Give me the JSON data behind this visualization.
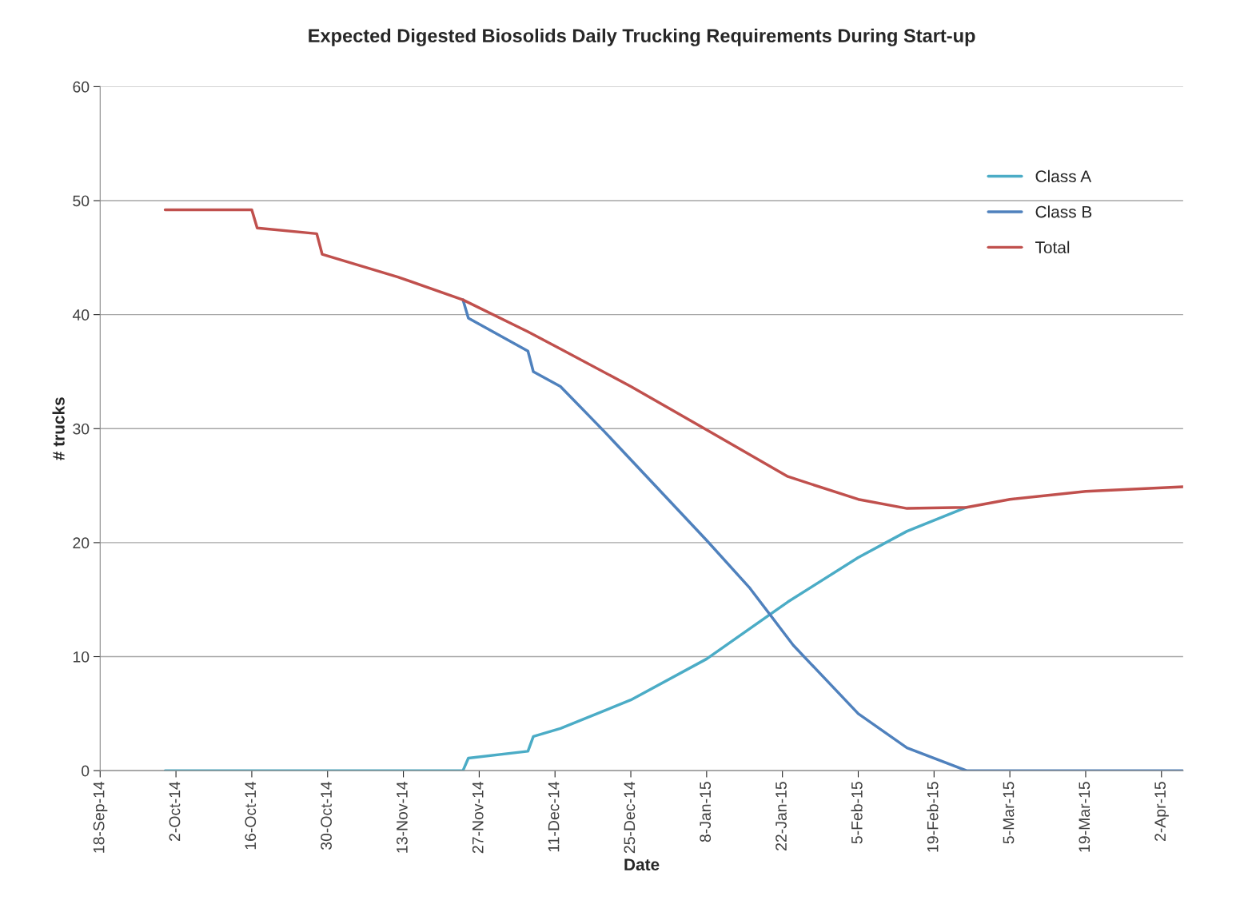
{
  "chart_data": {
    "type": "line",
    "title": "Expected Digested Biosolids Daily Trucking Requirements During Start-up",
    "xlabel": "Date",
    "ylabel": "# trucks",
    "xlim": [
      "2014-09-18",
      "2015-04-06"
    ],
    "xticks": [
      {
        "value": "2014-09-18",
        "label": "18-Sep-14"
      },
      {
        "value": "2014-10-02",
        "label": "2-Oct-14"
      },
      {
        "value": "2014-10-16",
        "label": "16-Oct-14"
      },
      {
        "value": "2014-10-30",
        "label": "30-Oct-14"
      },
      {
        "value": "2014-11-13",
        "label": "13-Nov-14"
      },
      {
        "value": "2014-11-27",
        "label": "27-Nov-14"
      },
      {
        "value": "2014-12-11",
        "label": "11-Dec-14"
      },
      {
        "value": "2014-12-25",
        "label": "25-Dec-14"
      },
      {
        "value": "2015-01-08",
        "label": "8-Jan-15"
      },
      {
        "value": "2015-01-22",
        "label": "22-Jan-15"
      },
      {
        "value": "2015-02-05",
        "label": "5-Feb-15"
      },
      {
        "value": "2015-02-19",
        "label": "19-Feb-15"
      },
      {
        "value": "2015-03-05",
        "label": "5-Mar-15"
      },
      {
        "value": "2015-03-19",
        "label": "19-Mar-15"
      },
      {
        "value": "2015-04-02",
        "label": "2-Apr-15"
      }
    ],
    "ylim": [
      0,
      60
    ],
    "yticks": [
      0,
      10,
      20,
      30,
      40,
      50,
      60
    ],
    "grid": "y",
    "legend": "top right",
    "series": [
      {
        "name": "Class A",
        "color": "#4bacc6",
        "x": [
          "2014-09-30",
          "2014-11-24",
          "2014-11-25",
          "2014-12-06",
          "2014-12-07",
          "2014-12-12",
          "2014-12-25",
          "2015-01-08",
          "2015-01-23",
          "2015-02-05",
          "2015-02-14",
          "2015-02-25"
        ],
        "values": [
          0,
          0,
          1.1,
          1.7,
          3.0,
          3.7,
          6.2,
          9.8,
          14.8,
          18.7,
          21,
          23.1
        ]
      },
      {
        "name": "Class B",
        "color": "#4f81bd",
        "x": [
          "2014-11-24",
          "2014-11-25",
          "2014-12-06",
          "2014-12-07",
          "2014-12-12",
          "2014-12-20",
          "2015-01-08",
          "2015-01-16",
          "2015-01-24",
          "2015-02-05",
          "2015-02-14",
          "2015-02-25",
          "2015-04-06"
        ],
        "values": [
          41.3,
          39.7,
          36.8,
          35.0,
          33.7,
          29.8,
          20.2,
          16,
          11,
          5,
          2,
          0,
          0
        ]
      },
      {
        "name": "Total",
        "color": "#c0504d",
        "x": [
          "2014-09-30",
          "2014-10-16",
          "2014-10-17",
          "2014-10-28",
          "2014-10-29",
          "2014-11-12",
          "2014-11-24",
          "2014-12-06",
          "2014-12-12",
          "2014-12-25",
          "2015-01-08",
          "2015-01-23",
          "2015-02-05",
          "2015-02-14",
          "2015-02-25",
          "2015-03-05",
          "2015-03-19",
          "2015-04-06"
        ],
        "values": [
          49.2,
          49.2,
          47.6,
          47.1,
          45.3,
          43.3,
          41.3,
          38.5,
          37,
          33.7,
          29.9,
          25.8,
          23.8,
          23.0,
          23.1,
          23.8,
          24.5,
          24.9
        ]
      }
    ]
  }
}
